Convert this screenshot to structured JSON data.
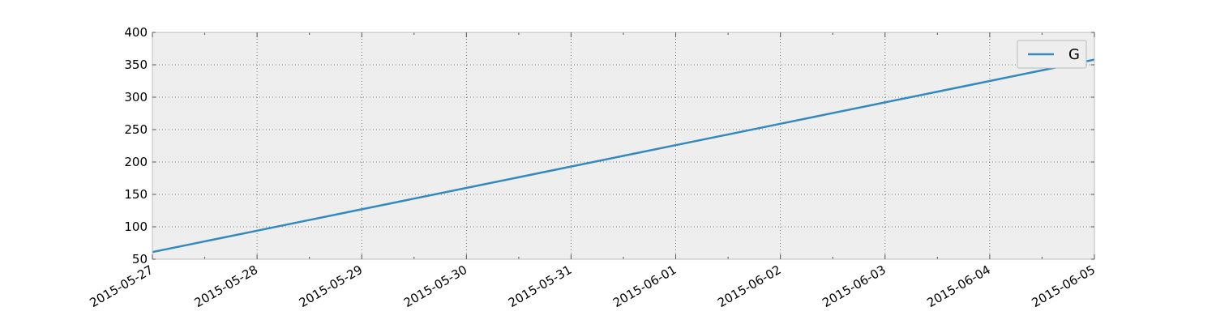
{
  "chart_data": {
    "type": "line",
    "title": "",
    "xlabel": "",
    "ylabel": "",
    "x": [
      "2015-05-27",
      "2015-05-28",
      "2015-05-29",
      "2015-05-30",
      "2015-05-31",
      "2015-06-01",
      "2015-06-02",
      "2015-06-03",
      "2015-06-04",
      "2015-06-05"
    ],
    "series": [
      {
        "name": "G",
        "values": [
          61,
          94,
          127,
          160,
          193,
          226,
          259,
          292,
          325,
          358
        ],
        "color": "#348ABD"
      }
    ],
    "xlim": [
      "2015-05-27",
      "2015-06-05"
    ],
    "ylim": [
      50,
      400
    ],
    "x_ticks": [
      "2015-05-27",
      "2015-05-28",
      "2015-05-29",
      "2015-05-30",
      "2015-05-31",
      "2015-06-01",
      "2015-06-02",
      "2015-06-03",
      "2015-06-04",
      "2015-06-05"
    ],
    "y_ticks": [
      "50",
      "100",
      "150",
      "200",
      "250",
      "300",
      "350",
      "400"
    ],
    "grid": true,
    "legend_position": "top-right",
    "background_color": "#EEEEEE"
  }
}
